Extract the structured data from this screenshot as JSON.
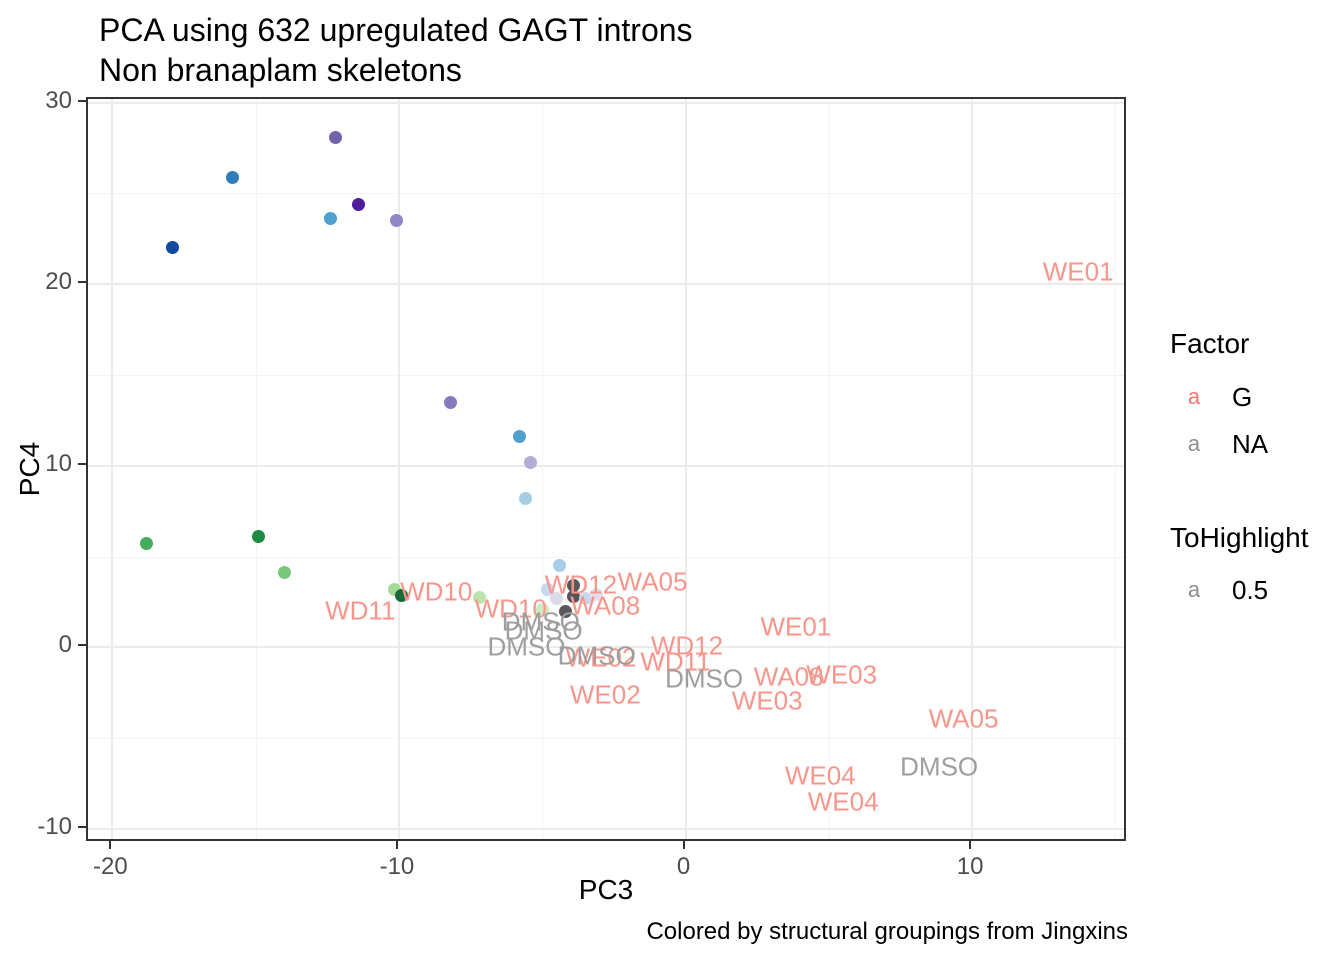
{
  "title": "PCA using 632 upregulated GAGT introns",
  "subtitle": "Non branaplam skeletons",
  "caption": "Colored by structural groupings from Jingxins",
  "axes": {
    "x_title": "PC3",
    "y_title": "PC4"
  },
  "legend": {
    "sections": [
      {
        "title": "Factor",
        "items": [
          {
            "key": "a",
            "key_color": "#F8766D",
            "label": "G"
          },
          {
            "key": "a",
            "key_color": "#8F8F8F",
            "label": "NA"
          }
        ]
      },
      {
        "title": "ToHighlight",
        "items": [
          {
            "key": "a",
            "key_color": "#8F8F8F",
            "label": "0.5"
          }
        ]
      }
    ]
  },
  "chart_data": {
    "type": "scatter",
    "title": "PCA using 632 upregulated GAGT introns",
    "subtitle": "Non branaplam skeletons",
    "xlabel": "PC3",
    "ylabel": "PC4",
    "xlim": [
      -20.85,
      15.3
    ],
    "ylim": [
      -10.55,
      30.2
    ],
    "x_major_ticks": [
      -20,
      -10,
      0,
      10
    ],
    "y_major_ticks": [
      -10,
      0,
      10,
      20,
      30
    ],
    "x_minor_ticks": [
      -15,
      -5,
      5,
      15
    ],
    "y_minor_ticks": [
      -5,
      5,
      15,
      25
    ],
    "grid": true,
    "legend_position": "right",
    "points": [
      {
        "x": -12.2,
        "y": 28.1,
        "color": "#7262AC"
      },
      {
        "x": -15.8,
        "y": 25.9,
        "color": "#2E7EBD"
      },
      {
        "x": -11.4,
        "y": 24.4,
        "color": "#4E1E9D"
      },
      {
        "x": -12.4,
        "y": 23.6,
        "color": "#4EA0D0"
      },
      {
        "x": -10.1,
        "y": 23.5,
        "color": "#9088C5"
      },
      {
        "x": -17.9,
        "y": 22.0,
        "color": "#1349A0"
      },
      {
        "x": -8.2,
        "y": 13.5,
        "color": "#8878BE"
      },
      {
        "x": -5.8,
        "y": 11.6,
        "color": "#4FA0CE"
      },
      {
        "x": -5.4,
        "y": 10.2,
        "color": "#B4ABD7"
      },
      {
        "x": -5.6,
        "y": 8.2,
        "color": "#A6CEE3"
      },
      {
        "x": -4.4,
        "y": 4.5,
        "color": "#A9CCE9"
      },
      {
        "x": -4.8,
        "y": 3.2,
        "color": "#C4D8EF"
      },
      {
        "x": -3.9,
        "y": 3.4,
        "color": "#595959"
      },
      {
        "x": -4.5,
        "y": 2.7,
        "color": "#D8DBE7"
      },
      {
        "x": -3.9,
        "y": 2.8,
        "color": "#555558"
      },
      {
        "x": -3.5,
        "y": 2.7,
        "color": "#CDD5ED"
      },
      {
        "x": -3.1,
        "y": 2.9,
        "color": "#DEE1F2"
      },
      {
        "x": -5.0,
        "y": 2.1,
        "color": "#CDEBC3"
      },
      {
        "x": -4.2,
        "y": 2.0,
        "color": "#58585A"
      },
      {
        "x": -7.2,
        "y": 2.75,
        "color": "#BCE4AF"
      },
      {
        "x": -10.15,
        "y": 3.2,
        "color": "#A3DA96"
      },
      {
        "x": -9.9,
        "y": 2.85,
        "color": "#176B3B"
      },
      {
        "x": -18.8,
        "y": 5.7,
        "color": "#43AD5C"
      },
      {
        "x": -14.9,
        "y": 6.1,
        "color": "#1F8A41"
      },
      {
        "x": -14.0,
        "y": 4.1,
        "color": "#78C77B"
      }
    ],
    "text_labels": [
      {
        "x": 13.7,
        "y": 20.7,
        "text": "WE01",
        "group": "G"
      },
      {
        "x": -8.7,
        "y": 3.05,
        "text": "WD10",
        "group": "G"
      },
      {
        "x": -11.35,
        "y": 2.0,
        "text": "WD11",
        "group": "G"
      },
      {
        "x": -6.1,
        "y": 2.1,
        "text": "WD10",
        "group": "G"
      },
      {
        "x": -3.65,
        "y": 3.45,
        "text": "WD12",
        "group": "G"
      },
      {
        "x": -1.15,
        "y": 3.6,
        "text": "WA05",
        "group": "G"
      },
      {
        "x": -2.8,
        "y": 2.3,
        "text": "WA08",
        "group": "G"
      },
      {
        "x": -2.95,
        "y": -0.6,
        "text": "WE02",
        "group": "G"
      },
      {
        "x": 0.05,
        "y": 0.1,
        "text": "WD12",
        "group": "G"
      },
      {
        "x": -0.35,
        "y": -0.8,
        "text": "WD11",
        "group": "G"
      },
      {
        "x": 3.85,
        "y": 1.1,
        "text": "WE01",
        "group": "G"
      },
      {
        "x": 3.6,
        "y": -1.65,
        "text": "WA08",
        "group": "G"
      },
      {
        "x": 5.45,
        "y": -1.5,
        "text": "WE03",
        "group": "G"
      },
      {
        "x": 2.85,
        "y": -2.95,
        "text": "WE03",
        "group": "G"
      },
      {
        "x": -2.8,
        "y": -2.6,
        "text": "WE02",
        "group": "G"
      },
      {
        "x": 9.7,
        "y": -3.95,
        "text": "WA05",
        "group": "G"
      },
      {
        "x": 4.7,
        "y": -7.1,
        "text": "WE04",
        "group": "G"
      },
      {
        "x": 5.5,
        "y": -8.5,
        "text": "WE04",
        "group": "G"
      },
      {
        "x": -5.05,
        "y": 1.4,
        "text": "DMSO",
        "group": "NA"
      },
      {
        "x": -4.95,
        "y": 0.9,
        "text": "DMSO",
        "group": "NA"
      },
      {
        "x": -5.55,
        "y": 0.05,
        "text": "DMSO",
        "group": "NA"
      },
      {
        "x": -3.1,
        "y": -0.5,
        "text": "DMSO",
        "group": "NA"
      },
      {
        "x": 0.65,
        "y": -1.75,
        "text": "DMSO",
        "group": "NA"
      },
      {
        "x": 8.85,
        "y": -6.6,
        "text": "DMSO",
        "group": "NA"
      }
    ],
    "label_colors": {
      "G": "#F8968C",
      "NA": "#9E9E9E"
    }
  }
}
